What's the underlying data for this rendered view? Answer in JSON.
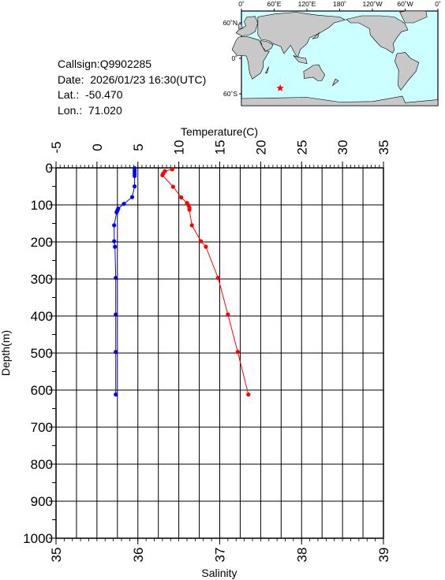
{
  "info": {
    "callsign": "Callsign:Q9902285",
    "date": "Date:  2026/01/23 16:30(UTC)",
    "lat": "Lat.:  -50.470",
    "lon": "Lon.:  71.020"
  },
  "map": {
    "lon_labels": [
      "0˚",
      "60˚E",
      "120˚E",
      "180˚",
      "120˚W",
      "60˚W",
      "0˚"
    ],
    "lat_labels": [
      "60˚N",
      "0˚",
      "60˚S"
    ],
    "float_position": {
      "lat": -50.47,
      "lon": 71.02
    },
    "colors": {
      "ocean": "#ccffff",
      "land": "#c8c8c8",
      "marker": "#ff0000"
    }
  },
  "chart_data": {
    "type": "line",
    "ylabel": "Depth(m)",
    "ylim": [
      1000,
      0
    ],
    "yticks": [
      "0",
      "100",
      "200",
      "300",
      "400",
      "500",
      "600",
      "700",
      "800",
      "900",
      "1000"
    ],
    "top_axis": {
      "label": "Temperature(C)",
      "range": [
        -5,
        35
      ],
      "ticks": [
        "-5",
        "0",
        "5",
        "10",
        "15",
        "20",
        "25",
        "30",
        "35"
      ]
    },
    "bottom_axis": {
      "label": "Salinity",
      "range": [
        35,
        39
      ],
      "ticks": [
        "35",
        "36",
        "37",
        "38",
        "39"
      ]
    },
    "grid": true,
    "series": [
      {
        "color": "#ff0000",
        "axis": "top",
        "points": [
          [
            9.2,
            4
          ],
          [
            8.3,
            9
          ],
          [
            8.1,
            15
          ],
          [
            8.0,
            20
          ],
          [
            9.3,
            51
          ],
          [
            10.3,
            80
          ],
          [
            11.0,
            95
          ],
          [
            11.2,
            102
          ],
          [
            11.3,
            108
          ],
          [
            11.3,
            113
          ],
          [
            11.6,
            155
          ],
          [
            12.7,
            198
          ],
          [
            13.3,
            213
          ],
          [
            14.8,
            297
          ],
          [
            16.0,
            396
          ],
          [
            17.2,
            497
          ],
          [
            18.5,
            612
          ]
        ]
      },
      {
        "color": "#0000ff",
        "axis": "bottom",
        "points": [
          [
            35.96,
            1
          ],
          [
            35.96,
            8
          ],
          [
            35.96,
            15
          ],
          [
            35.96,
            22
          ],
          [
            35.96,
            50
          ],
          [
            35.93,
            79
          ],
          [
            35.83,
            97
          ],
          [
            35.76,
            110
          ],
          [
            35.75,
            115
          ],
          [
            35.74,
            120
          ],
          [
            35.71,
            155
          ],
          [
            35.71,
            198
          ],
          [
            35.72,
            213
          ],
          [
            35.73,
            297
          ],
          [
            35.73,
            396
          ],
          [
            35.73,
            497
          ],
          [
            35.73,
            612
          ]
        ]
      }
    ]
  }
}
